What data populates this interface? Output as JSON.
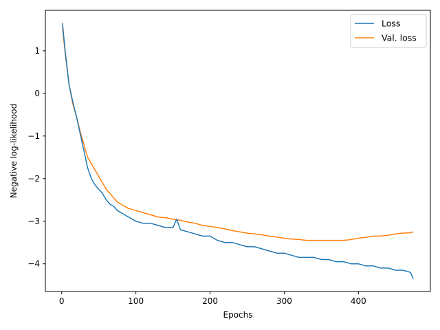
{
  "chart_data": {
    "type": "line",
    "title": "",
    "xlabel": "Epochs",
    "ylabel": "Negative log-likelihood",
    "xlim": [
      -22,
      497
    ],
    "ylim": [
      -4.65,
      1.95
    ],
    "xticks": [
      0,
      100,
      200,
      300,
      400
    ],
    "yticks": [
      1,
      0,
      -1,
      -2,
      -3,
      -4
    ],
    "xtick_labels": [
      "0",
      "100",
      "200",
      "300",
      "400"
    ],
    "ytick_labels": [
      "1",
      "0",
      "−1",
      "−2",
      "−3",
      "−4"
    ],
    "grid": false,
    "legend_position": "top-right",
    "series": [
      {
        "name": "Loss",
        "color": "#1f77b4",
        "x": [
          1,
          5,
          10,
          15,
          20,
          25,
          30,
          35,
          40,
          45,
          50,
          55,
          60,
          65,
          70,
          75,
          80,
          90,
          100,
          110,
          120,
          130,
          140,
          150,
          155,
          160,
          170,
          180,
          190,
          200,
          210,
          220,
          230,
          240,
          250,
          260,
          270,
          280,
          290,
          300,
          310,
          320,
          330,
          340,
          350,
          360,
          370,
          380,
          390,
          400,
          410,
          420,
          430,
          440,
          450,
          460,
          470,
          474
        ],
        "y": [
          1.65,
          0.95,
          0.2,
          -0.2,
          -0.55,
          -0.95,
          -1.35,
          -1.75,
          -2.0,
          -2.15,
          -2.25,
          -2.35,
          -2.5,
          -2.6,
          -2.65,
          -2.75,
          -2.8,
          -2.9,
          -3.0,
          -3.05,
          -3.05,
          -3.1,
          -3.15,
          -3.15,
          -2.95,
          -3.2,
          -3.25,
          -3.3,
          -3.35,
          -3.35,
          -3.45,
          -3.5,
          -3.5,
          -3.55,
          -3.6,
          -3.6,
          -3.65,
          -3.7,
          -3.75,
          -3.75,
          -3.8,
          -3.85,
          -3.85,
          -3.85,
          -3.9,
          -3.9,
          -3.95,
          -3.95,
          -4.0,
          -4.0,
          -4.05,
          -4.05,
          -4.1,
          -4.1,
          -4.15,
          -4.15,
          -4.2,
          -4.35
        ]
      },
      {
        "name": "Val. loss",
        "color": "#ff7f0e",
        "x": [
          1,
          5,
          10,
          15,
          20,
          25,
          30,
          35,
          40,
          45,
          50,
          55,
          60,
          65,
          70,
          75,
          80,
          90,
          100,
          110,
          120,
          130,
          140,
          150,
          160,
          170,
          180,
          190,
          200,
          210,
          220,
          230,
          240,
          250,
          260,
          270,
          280,
          290,
          300,
          310,
          320,
          330,
          340,
          350,
          360,
          370,
          380,
          390,
          400,
          410,
          420,
          430,
          440,
          450,
          460,
          470,
          474
        ],
        "y": [
          1.55,
          0.9,
          0.2,
          -0.25,
          -0.55,
          -0.9,
          -1.2,
          -1.5,
          -1.65,
          -1.8,
          -1.95,
          -2.1,
          -2.25,
          -2.35,
          -2.45,
          -2.55,
          -2.6,
          -2.7,
          -2.75,
          -2.8,
          -2.85,
          -2.9,
          -2.92,
          -2.95,
          -2.98,
          -3.02,
          -3.05,
          -3.1,
          -3.12,
          -3.15,
          -3.18,
          -3.22,
          -3.25,
          -3.28,
          -3.3,
          -3.32,
          -3.35,
          -3.37,
          -3.4,
          -3.42,
          -3.43,
          -3.45,
          -3.45,
          -3.45,
          -3.45,
          -3.45,
          -3.45,
          -3.43,
          -3.4,
          -3.38,
          -3.35,
          -3.35,
          -3.33,
          -3.3,
          -3.28,
          -3.27,
          -3.25
        ]
      }
    ]
  }
}
